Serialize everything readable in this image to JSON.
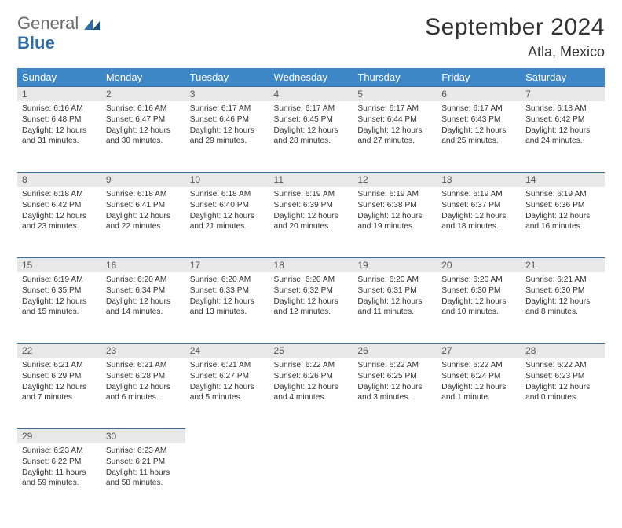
{
  "logo": {
    "line1": "General",
    "line2": "Blue"
  },
  "title": "September 2024",
  "location": "Atla, Mexico",
  "colors": {
    "header_bg": "#3d87c7",
    "header_text": "#ffffff",
    "daynum_bg": "#e8e8e8",
    "daynum_border": "#3d6e99",
    "page_bg": "#ffffff",
    "logo_gray": "#6b6b6b",
    "logo_blue": "#2f6da8"
  },
  "weekdays": [
    "Sunday",
    "Monday",
    "Tuesday",
    "Wednesday",
    "Thursday",
    "Friday",
    "Saturday"
  ],
  "weeks": [
    [
      {
        "n": "1",
        "sr": "6:16 AM",
        "ss": "6:48 PM",
        "dl": "12 hours and 31 minutes."
      },
      {
        "n": "2",
        "sr": "6:16 AM",
        "ss": "6:47 PM",
        "dl": "12 hours and 30 minutes."
      },
      {
        "n": "3",
        "sr": "6:17 AM",
        "ss": "6:46 PM",
        "dl": "12 hours and 29 minutes."
      },
      {
        "n": "4",
        "sr": "6:17 AM",
        "ss": "6:45 PM",
        "dl": "12 hours and 28 minutes."
      },
      {
        "n": "5",
        "sr": "6:17 AM",
        "ss": "6:44 PM",
        "dl": "12 hours and 27 minutes."
      },
      {
        "n": "6",
        "sr": "6:17 AM",
        "ss": "6:43 PM",
        "dl": "12 hours and 25 minutes."
      },
      {
        "n": "7",
        "sr": "6:18 AM",
        "ss": "6:42 PM",
        "dl": "12 hours and 24 minutes."
      }
    ],
    [
      {
        "n": "8",
        "sr": "6:18 AM",
        "ss": "6:42 PM",
        "dl": "12 hours and 23 minutes."
      },
      {
        "n": "9",
        "sr": "6:18 AM",
        "ss": "6:41 PM",
        "dl": "12 hours and 22 minutes."
      },
      {
        "n": "10",
        "sr": "6:18 AM",
        "ss": "6:40 PM",
        "dl": "12 hours and 21 minutes."
      },
      {
        "n": "11",
        "sr": "6:19 AM",
        "ss": "6:39 PM",
        "dl": "12 hours and 20 minutes."
      },
      {
        "n": "12",
        "sr": "6:19 AM",
        "ss": "6:38 PM",
        "dl": "12 hours and 19 minutes."
      },
      {
        "n": "13",
        "sr": "6:19 AM",
        "ss": "6:37 PM",
        "dl": "12 hours and 18 minutes."
      },
      {
        "n": "14",
        "sr": "6:19 AM",
        "ss": "6:36 PM",
        "dl": "12 hours and 16 minutes."
      }
    ],
    [
      {
        "n": "15",
        "sr": "6:19 AM",
        "ss": "6:35 PM",
        "dl": "12 hours and 15 minutes."
      },
      {
        "n": "16",
        "sr": "6:20 AM",
        "ss": "6:34 PM",
        "dl": "12 hours and 14 minutes."
      },
      {
        "n": "17",
        "sr": "6:20 AM",
        "ss": "6:33 PM",
        "dl": "12 hours and 13 minutes."
      },
      {
        "n": "18",
        "sr": "6:20 AM",
        "ss": "6:32 PM",
        "dl": "12 hours and 12 minutes."
      },
      {
        "n": "19",
        "sr": "6:20 AM",
        "ss": "6:31 PM",
        "dl": "12 hours and 11 minutes."
      },
      {
        "n": "20",
        "sr": "6:20 AM",
        "ss": "6:30 PM",
        "dl": "12 hours and 10 minutes."
      },
      {
        "n": "21",
        "sr": "6:21 AM",
        "ss": "6:30 PM",
        "dl": "12 hours and 8 minutes."
      }
    ],
    [
      {
        "n": "22",
        "sr": "6:21 AM",
        "ss": "6:29 PM",
        "dl": "12 hours and 7 minutes."
      },
      {
        "n": "23",
        "sr": "6:21 AM",
        "ss": "6:28 PM",
        "dl": "12 hours and 6 minutes."
      },
      {
        "n": "24",
        "sr": "6:21 AM",
        "ss": "6:27 PM",
        "dl": "12 hours and 5 minutes."
      },
      {
        "n": "25",
        "sr": "6:22 AM",
        "ss": "6:26 PM",
        "dl": "12 hours and 4 minutes."
      },
      {
        "n": "26",
        "sr": "6:22 AM",
        "ss": "6:25 PM",
        "dl": "12 hours and 3 minutes."
      },
      {
        "n": "27",
        "sr": "6:22 AM",
        "ss": "6:24 PM",
        "dl": "12 hours and 1 minute."
      },
      {
        "n": "28",
        "sr": "6:22 AM",
        "ss": "6:23 PM",
        "dl": "12 hours and 0 minutes."
      }
    ],
    [
      {
        "n": "29",
        "sr": "6:23 AM",
        "ss": "6:22 PM",
        "dl": "11 hours and 59 minutes."
      },
      {
        "n": "30",
        "sr": "6:23 AM",
        "ss": "6:21 PM",
        "dl": "11 hours and 58 minutes."
      },
      null,
      null,
      null,
      null,
      null
    ]
  ],
  "labels": {
    "sunrise": "Sunrise: ",
    "sunset": "Sunset: ",
    "daylight": "Daylight: "
  }
}
